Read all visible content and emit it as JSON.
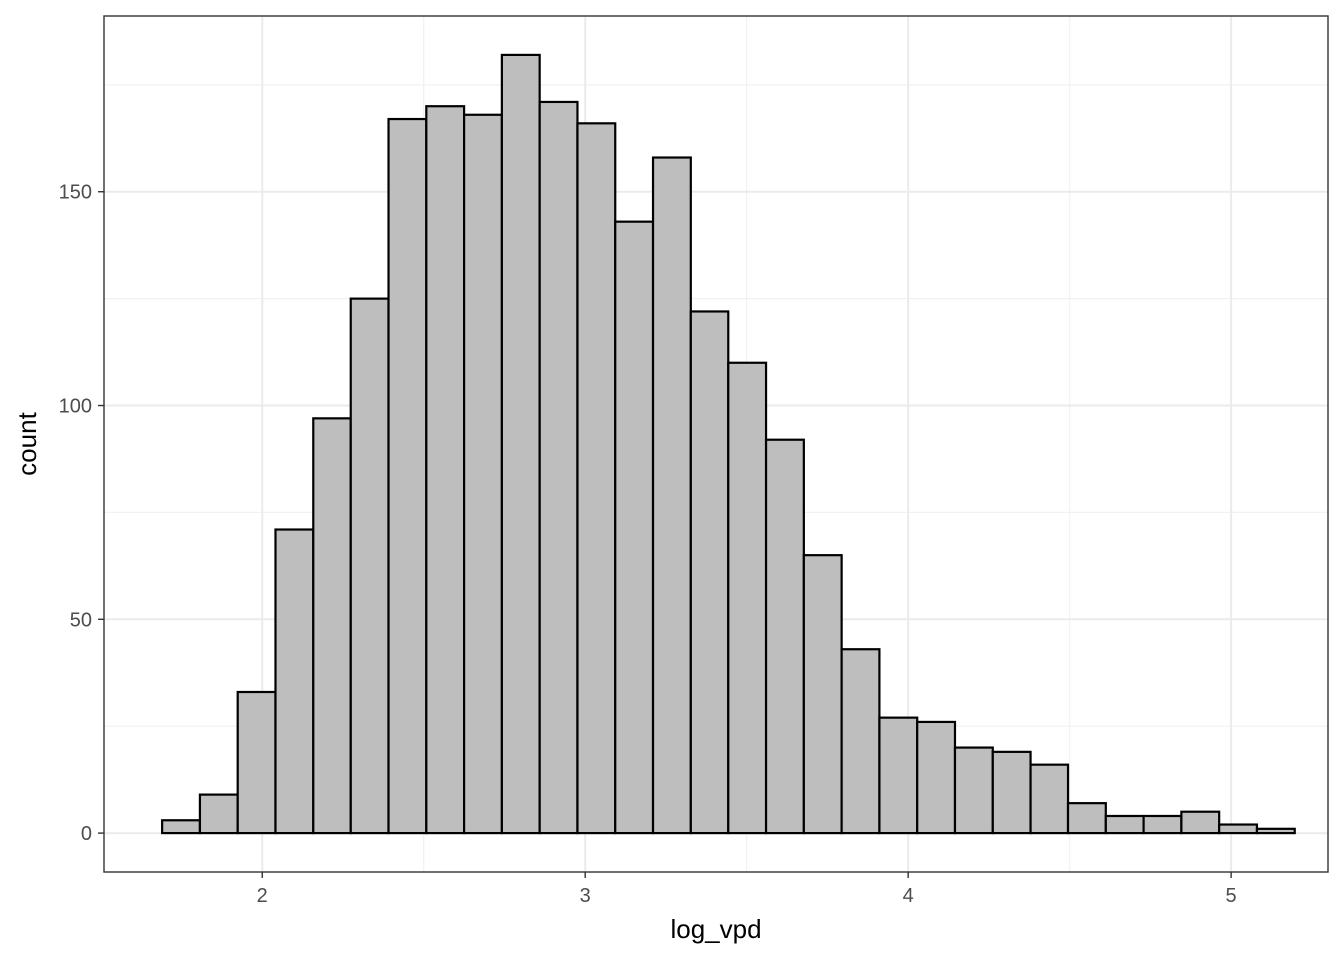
{
  "chart_data": {
    "type": "bar",
    "subtype": "histogram",
    "xlabel": "log_vpd",
    "ylabel": "count",
    "xlim": [
      1.51,
      5.3
    ],
    "ylim": [
      -9.1,
      191.1
    ],
    "x_ticks": [
      2,
      3,
      4,
      5
    ],
    "x_tick_labels": [
      "2",
      "3",
      "4",
      "5"
    ],
    "y_ticks": [
      0,
      50,
      100,
      150
    ],
    "y_tick_labels": [
      "0",
      "50",
      "100",
      "150"
    ],
    "grid": true,
    "fill_color": "#bebebe",
    "edge_color": "#000000",
    "bin_width": 0.1169,
    "bins": [
      {
        "x0": 1.69,
        "x1": 1.807,
        "count": 3
      },
      {
        "x0": 1.807,
        "x1": 1.924,
        "count": 9
      },
      {
        "x0": 1.924,
        "x1": 2.041,
        "count": 33
      },
      {
        "x0": 2.041,
        "x1": 2.158,
        "count": 71
      },
      {
        "x0": 2.158,
        "x1": 2.274,
        "count": 97
      },
      {
        "x0": 2.274,
        "x1": 2.391,
        "count": 125
      },
      {
        "x0": 2.391,
        "x1": 2.508,
        "count": 167
      },
      {
        "x0": 2.508,
        "x1": 2.625,
        "count": 170
      },
      {
        "x0": 2.625,
        "x1": 2.742,
        "count": 168
      },
      {
        "x0": 2.742,
        "x1": 2.859,
        "count": 182
      },
      {
        "x0": 2.859,
        "x1": 2.976,
        "count": 171
      },
      {
        "x0": 2.976,
        "x1": 3.093,
        "count": 166
      },
      {
        "x0": 3.093,
        "x1": 3.21,
        "count": 143
      },
      {
        "x0": 3.21,
        "x1": 3.327,
        "count": 158
      },
      {
        "x0": 3.327,
        "x1": 3.443,
        "count": 122
      },
      {
        "x0": 3.443,
        "x1": 3.56,
        "count": 110
      },
      {
        "x0": 3.56,
        "x1": 3.677,
        "count": 92
      },
      {
        "x0": 3.677,
        "x1": 3.794,
        "count": 65
      },
      {
        "x0": 3.794,
        "x1": 3.911,
        "count": 43
      },
      {
        "x0": 3.911,
        "x1": 4.028,
        "count": 27
      },
      {
        "x0": 4.028,
        "x1": 4.145,
        "count": 26
      },
      {
        "x0": 4.145,
        "x1": 4.262,
        "count": 20
      },
      {
        "x0": 4.262,
        "x1": 4.379,
        "count": 19
      },
      {
        "x0": 4.379,
        "x1": 4.495,
        "count": 16
      },
      {
        "x0": 4.495,
        "x1": 4.612,
        "count": 7
      },
      {
        "x0": 4.612,
        "x1": 4.729,
        "count": 4
      },
      {
        "x0": 4.729,
        "x1": 4.846,
        "count": 4
      },
      {
        "x0": 4.846,
        "x1": 4.963,
        "count": 5
      },
      {
        "x0": 4.963,
        "x1": 5.08,
        "count": 2
      },
      {
        "x0": 5.08,
        "x1": 5.197,
        "count": 1
      }
    ]
  }
}
